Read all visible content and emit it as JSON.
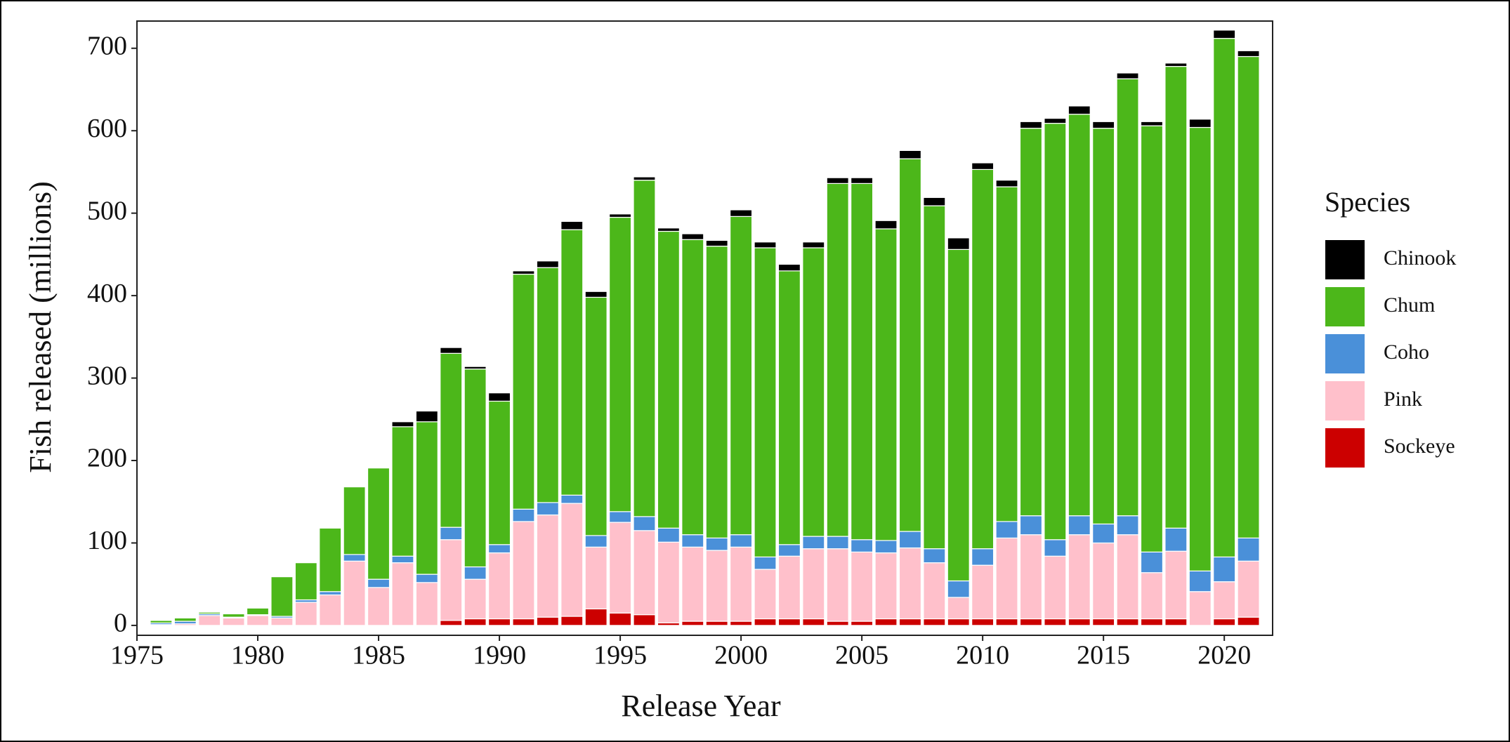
{
  "chart_data": {
    "type": "stacked_bar",
    "x_label": "Release Year",
    "y_label": "Fish released (millions)",
    "legend_title": "Species",
    "x": [
      1976,
      1977,
      1978,
      1979,
      1980,
      1981,
      1982,
      1983,
      1984,
      1985,
      1986,
      1987,
      1988,
      1989,
      1990,
      1991,
      1992,
      1993,
      1994,
      1995,
      1996,
      1997,
      1998,
      1999,
      2000,
      2001,
      2002,
      2003,
      2004,
      2005,
      2006,
      2007,
      2008,
      2009,
      2010,
      2011,
      2012,
      2013,
      2014,
      2015,
      2016,
      2017,
      2018,
      2019,
      2020,
      2021
    ],
    "series": [
      {
        "name": "Chinook",
        "color": "#000000",
        "values": [
          0,
          0,
          0,
          0,
          0,
          0,
          0,
          0,
          0,
          1,
          6,
          13,
          7,
          3,
          10,
          4,
          8,
          10,
          7,
          4,
          4,
          4,
          7,
          7,
          8,
          7,
          8,
          7,
          7,
          7,
          10,
          10,
          10,
          14,
          8,
          8,
          8,
          6,
          10,
          8,
          7,
          5,
          4,
          10,
          10,
          7
        ]
      },
      {
        "name": "Chum",
        "color": "#4cb71a",
        "values": [
          3,
          4,
          2,
          4,
          8,
          48,
          45,
          77,
          82,
          135,
          157,
          185,
          211,
          240,
          174,
          285,
          285,
          322,
          289,
          357,
          408,
          360,
          358,
          354,
          386,
          375,
          332,
          350,
          428,
          432,
          378,
          452,
          416,
          402,
          460,
          406,
          470,
          505,
          487,
          480,
          530,
          517,
          560,
          538,
          629,
          584
        ]
      },
      {
        "name": "Coho",
        "color": "#4a90d9",
        "values": [
          2,
          3,
          2,
          1,
          1,
          2,
          3,
          4,
          8,
          10,
          8,
          10,
          15,
          15,
          10,
          15,
          15,
          10,
          14,
          13,
          17,
          17,
          15,
          15,
          15,
          15,
          14,
          15,
          15,
          15,
          15,
          20,
          17,
          20,
          20,
          20,
          23,
          20,
          23,
          23,
          23,
          25,
          28,
          25,
          30,
          28
        ]
      },
      {
        "name": "Pink",
        "color": "#ffc0cb",
        "values": [
          1,
          2,
          12,
          9,
          12,
          9,
          28,
          37,
          78,
          46,
          76,
          52,
          98,
          48,
          80,
          118,
          124,
          137,
          75,
          110,
          102,
          98,
          90,
          86,
          90,
          60,
          76,
          85,
          88,
          84,
          80,
          86,
          68,
          26,
          65,
          98,
          102,
          76,
          102,
          92,
          102,
          56,
          82,
          41,
          45,
          68
        ]
      },
      {
        "name": "Sockeye",
        "color": "#cc0000",
        "values": [
          0,
          0,
          0,
          0,
          0,
          0,
          0,
          0,
          0,
          0,
          0,
          0,
          6,
          8,
          8,
          8,
          10,
          11,
          20,
          15,
          13,
          3,
          5,
          5,
          5,
          8,
          8,
          8,
          5,
          5,
          8,
          8,
          8,
          8,
          8,
          8,
          8,
          8,
          8,
          8,
          8,
          8,
          8,
          0,
          8,
          10
        ]
      }
    ],
    "xlim": [
      1975,
      2022
    ],
    "xticks": [
      1975,
      1980,
      1985,
      1990,
      1995,
      2000,
      2005,
      2010,
      2015,
      2020
    ],
    "ylim": [
      -12,
      733
    ],
    "yticks": [
      0,
      100,
      200,
      300,
      400,
      500,
      600,
      700
    ],
    "grid": false,
    "legend_position": "right"
  }
}
